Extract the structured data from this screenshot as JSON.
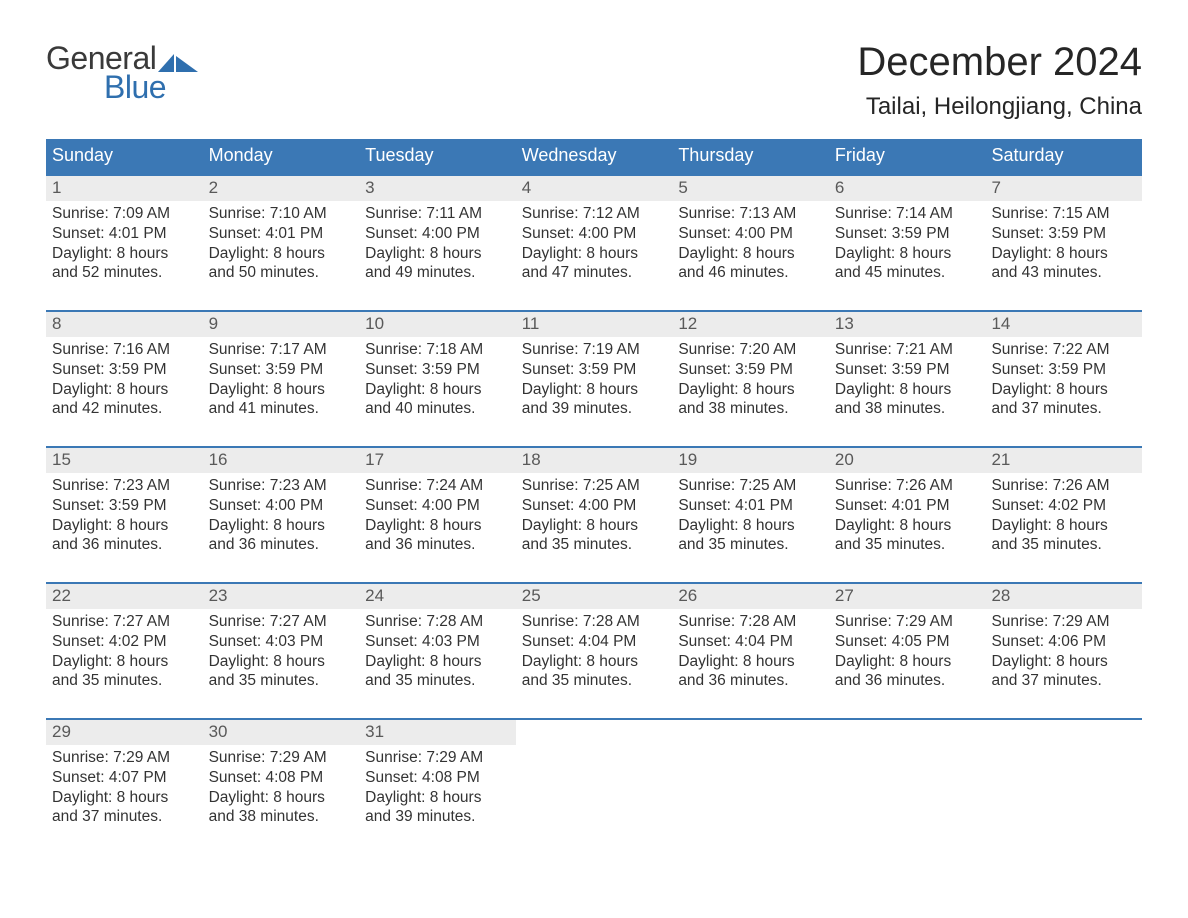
{
  "logo": {
    "line1": "General",
    "line2": "Blue"
  },
  "title": "December 2024",
  "location": "Tailai, Heilongjiang, China",
  "colors": {
    "header_bg": "#3b78b5",
    "header_text": "#ffffff",
    "daynum_bg": "#ececec",
    "daynum_text": "#595959",
    "body_text": "#333333",
    "logo_blue": "#2f6fae",
    "title_text": "#262626",
    "page_bg": "#ffffff"
  },
  "daysOfWeek": [
    "Sunday",
    "Monday",
    "Tuesday",
    "Wednesday",
    "Thursday",
    "Friday",
    "Saturday"
  ],
  "weeks": [
    [
      {
        "n": "1",
        "sunrise": "Sunrise: 7:09 AM",
        "sunset": "Sunset: 4:01 PM",
        "d1": "Daylight: 8 hours",
        "d2": "and 52 minutes."
      },
      {
        "n": "2",
        "sunrise": "Sunrise: 7:10 AM",
        "sunset": "Sunset: 4:01 PM",
        "d1": "Daylight: 8 hours",
        "d2": "and 50 minutes."
      },
      {
        "n": "3",
        "sunrise": "Sunrise: 7:11 AM",
        "sunset": "Sunset: 4:00 PM",
        "d1": "Daylight: 8 hours",
        "d2": "and 49 minutes."
      },
      {
        "n": "4",
        "sunrise": "Sunrise: 7:12 AM",
        "sunset": "Sunset: 4:00 PM",
        "d1": "Daylight: 8 hours",
        "d2": "and 47 minutes."
      },
      {
        "n": "5",
        "sunrise": "Sunrise: 7:13 AM",
        "sunset": "Sunset: 4:00 PM",
        "d1": "Daylight: 8 hours",
        "d2": "and 46 minutes."
      },
      {
        "n": "6",
        "sunrise": "Sunrise: 7:14 AM",
        "sunset": "Sunset: 3:59 PM",
        "d1": "Daylight: 8 hours",
        "d2": "and 45 minutes."
      },
      {
        "n": "7",
        "sunrise": "Sunrise: 7:15 AM",
        "sunset": "Sunset: 3:59 PM",
        "d1": "Daylight: 8 hours",
        "d2": "and 43 minutes."
      }
    ],
    [
      {
        "n": "8",
        "sunrise": "Sunrise: 7:16 AM",
        "sunset": "Sunset: 3:59 PM",
        "d1": "Daylight: 8 hours",
        "d2": "and 42 minutes."
      },
      {
        "n": "9",
        "sunrise": "Sunrise: 7:17 AM",
        "sunset": "Sunset: 3:59 PM",
        "d1": "Daylight: 8 hours",
        "d2": "and 41 minutes."
      },
      {
        "n": "10",
        "sunrise": "Sunrise: 7:18 AM",
        "sunset": "Sunset: 3:59 PM",
        "d1": "Daylight: 8 hours",
        "d2": "and 40 minutes."
      },
      {
        "n": "11",
        "sunrise": "Sunrise: 7:19 AM",
        "sunset": "Sunset: 3:59 PM",
        "d1": "Daylight: 8 hours",
        "d2": "and 39 minutes."
      },
      {
        "n": "12",
        "sunrise": "Sunrise: 7:20 AM",
        "sunset": "Sunset: 3:59 PM",
        "d1": "Daylight: 8 hours",
        "d2": "and 38 minutes."
      },
      {
        "n": "13",
        "sunrise": "Sunrise: 7:21 AM",
        "sunset": "Sunset: 3:59 PM",
        "d1": "Daylight: 8 hours",
        "d2": "and 38 minutes."
      },
      {
        "n": "14",
        "sunrise": "Sunrise: 7:22 AM",
        "sunset": "Sunset: 3:59 PM",
        "d1": "Daylight: 8 hours",
        "d2": "and 37 minutes."
      }
    ],
    [
      {
        "n": "15",
        "sunrise": "Sunrise: 7:23 AM",
        "sunset": "Sunset: 3:59 PM",
        "d1": "Daylight: 8 hours",
        "d2": "and 36 minutes."
      },
      {
        "n": "16",
        "sunrise": "Sunrise: 7:23 AM",
        "sunset": "Sunset: 4:00 PM",
        "d1": "Daylight: 8 hours",
        "d2": "and 36 minutes."
      },
      {
        "n": "17",
        "sunrise": "Sunrise: 7:24 AM",
        "sunset": "Sunset: 4:00 PM",
        "d1": "Daylight: 8 hours",
        "d2": "and 36 minutes."
      },
      {
        "n": "18",
        "sunrise": "Sunrise: 7:25 AM",
        "sunset": "Sunset: 4:00 PM",
        "d1": "Daylight: 8 hours",
        "d2": "and 35 minutes."
      },
      {
        "n": "19",
        "sunrise": "Sunrise: 7:25 AM",
        "sunset": "Sunset: 4:01 PM",
        "d1": "Daylight: 8 hours",
        "d2": "and 35 minutes."
      },
      {
        "n": "20",
        "sunrise": "Sunrise: 7:26 AM",
        "sunset": "Sunset: 4:01 PM",
        "d1": "Daylight: 8 hours",
        "d2": "and 35 minutes."
      },
      {
        "n": "21",
        "sunrise": "Sunrise: 7:26 AM",
        "sunset": "Sunset: 4:02 PM",
        "d1": "Daylight: 8 hours",
        "d2": "and 35 minutes."
      }
    ],
    [
      {
        "n": "22",
        "sunrise": "Sunrise: 7:27 AM",
        "sunset": "Sunset: 4:02 PM",
        "d1": "Daylight: 8 hours",
        "d2": "and 35 minutes."
      },
      {
        "n": "23",
        "sunrise": "Sunrise: 7:27 AM",
        "sunset": "Sunset: 4:03 PM",
        "d1": "Daylight: 8 hours",
        "d2": "and 35 minutes."
      },
      {
        "n": "24",
        "sunrise": "Sunrise: 7:28 AM",
        "sunset": "Sunset: 4:03 PM",
        "d1": "Daylight: 8 hours",
        "d2": "and 35 minutes."
      },
      {
        "n": "25",
        "sunrise": "Sunrise: 7:28 AM",
        "sunset": "Sunset: 4:04 PM",
        "d1": "Daylight: 8 hours",
        "d2": "and 35 minutes."
      },
      {
        "n": "26",
        "sunrise": "Sunrise: 7:28 AM",
        "sunset": "Sunset: 4:04 PM",
        "d1": "Daylight: 8 hours",
        "d2": "and 36 minutes."
      },
      {
        "n": "27",
        "sunrise": "Sunrise: 7:29 AM",
        "sunset": "Sunset: 4:05 PM",
        "d1": "Daylight: 8 hours",
        "d2": "and 36 minutes."
      },
      {
        "n": "28",
        "sunrise": "Sunrise: 7:29 AM",
        "sunset": "Sunset: 4:06 PM",
        "d1": "Daylight: 8 hours",
        "d2": "and 37 minutes."
      }
    ],
    [
      {
        "n": "29",
        "sunrise": "Sunrise: 7:29 AM",
        "sunset": "Sunset: 4:07 PM",
        "d1": "Daylight: 8 hours",
        "d2": "and 37 minutes."
      },
      {
        "n": "30",
        "sunrise": "Sunrise: 7:29 AM",
        "sunset": "Sunset: 4:08 PM",
        "d1": "Daylight: 8 hours",
        "d2": "and 38 minutes."
      },
      {
        "n": "31",
        "sunrise": "Sunrise: 7:29 AM",
        "sunset": "Sunset: 4:08 PM",
        "d1": "Daylight: 8 hours",
        "d2": "and 39 minutes."
      },
      {
        "empty": true
      },
      {
        "empty": true
      },
      {
        "empty": true
      },
      {
        "empty": true
      }
    ]
  ]
}
